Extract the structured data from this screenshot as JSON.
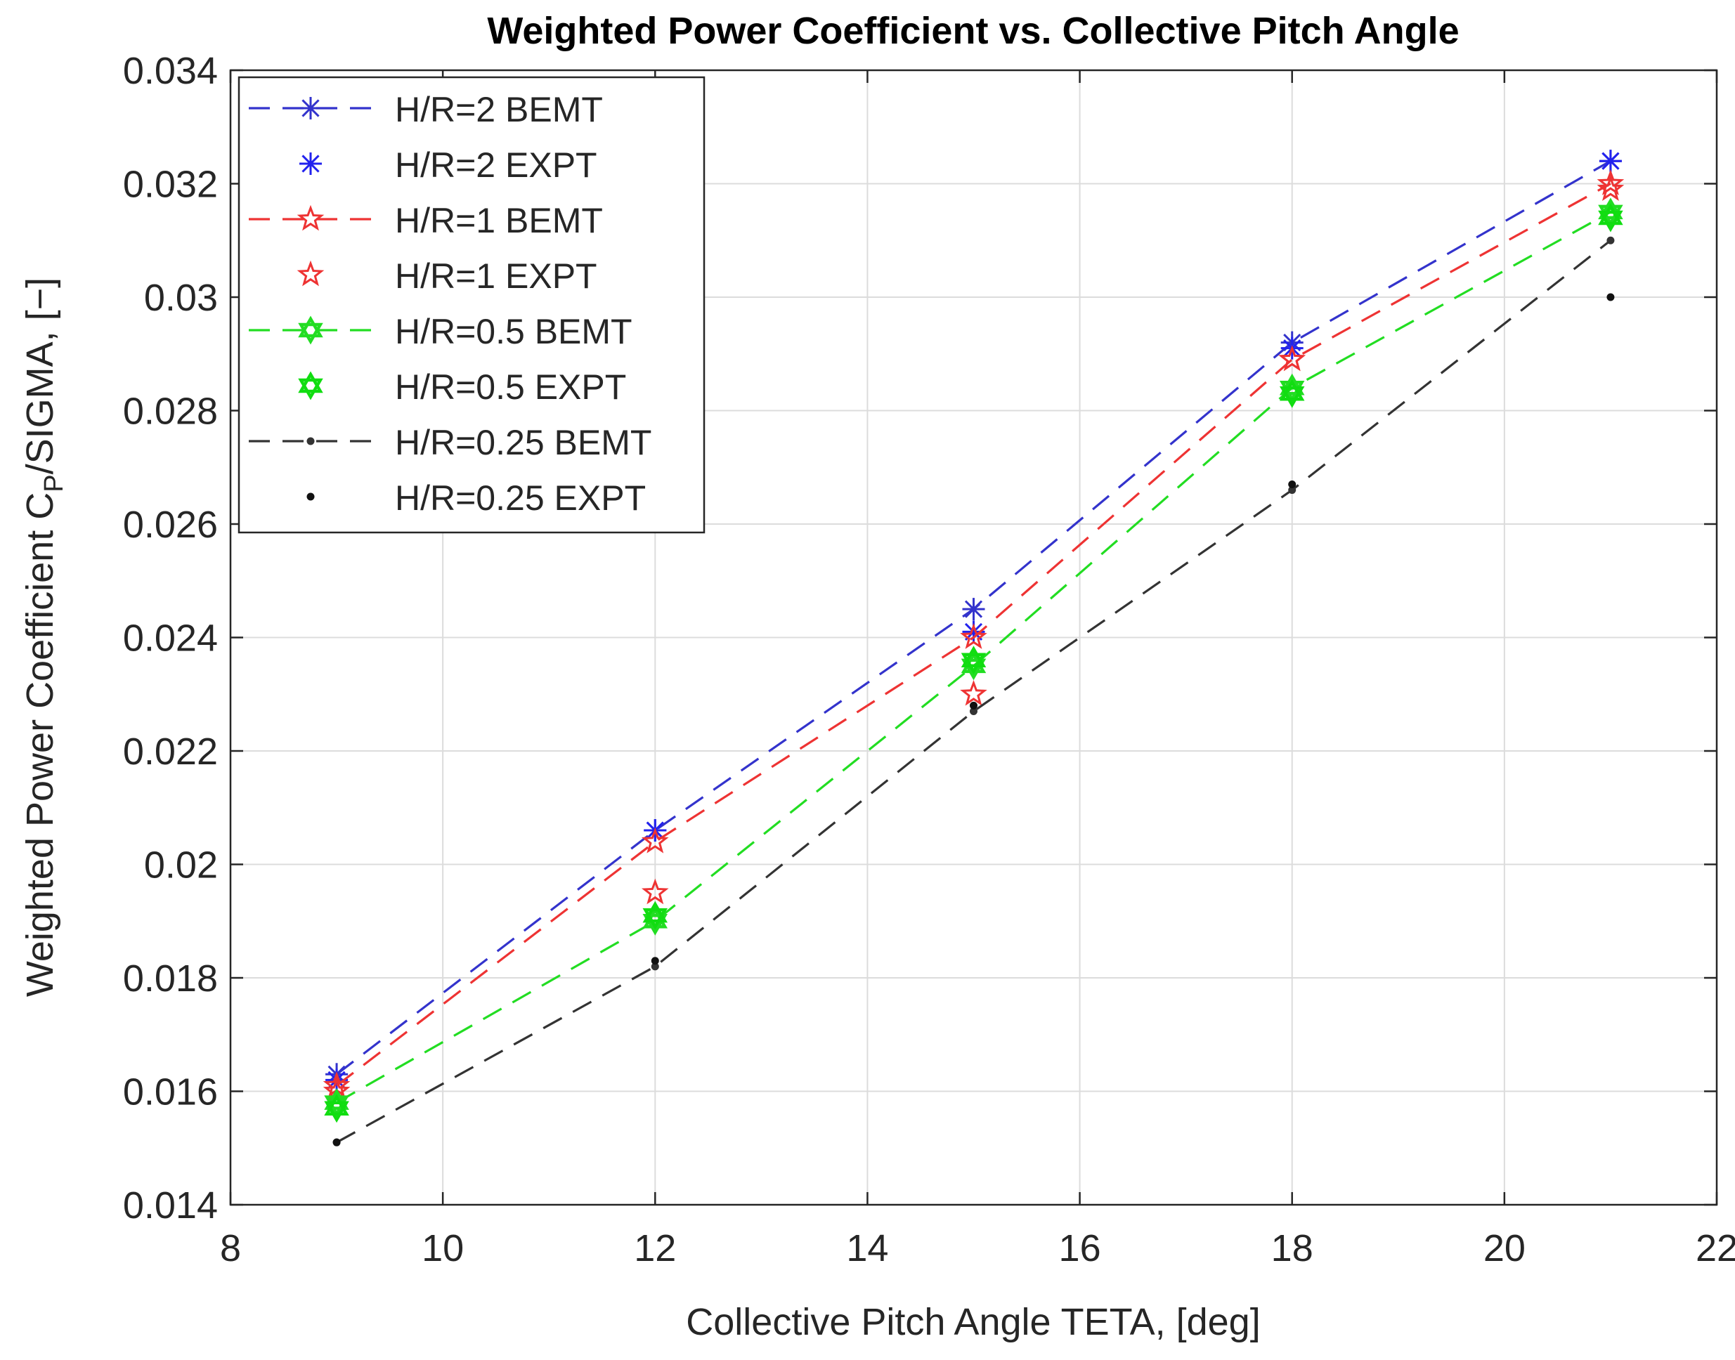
{
  "chart_data": {
    "type": "line",
    "title": "Weighted Power Coefficient vs. Collective Pitch Angle",
    "xlabel": "Collective Pitch Angle TETA, [deg]",
    "ylabel": {
      "prefix": "Weighted Power Coefficient C",
      "subscript": "P",
      "suffix": "/SIGMA, [−]"
    },
    "xlim": [
      8,
      22
    ],
    "ylim": [
      0.014,
      0.034
    ],
    "xticks": [
      8,
      10,
      12,
      14,
      16,
      18,
      20,
      22
    ],
    "xtick_labels": [
      "8",
      "10",
      "12",
      "14",
      "16",
      "18",
      "20",
      "22"
    ],
    "yticks": [
      0.014,
      0.016,
      0.018,
      0.02,
      0.022,
      0.024,
      0.026,
      0.028,
      0.03,
      0.032,
      0.034
    ],
    "ytick_labels": [
      "0.014",
      "0.016",
      "0.018",
      "0.02",
      "0.022",
      "0.024",
      "0.026",
      "0.028",
      "0.03",
      "0.032",
      "0.034"
    ],
    "grid": true,
    "legend_position": "top-left",
    "x": [
      9,
      12,
      15,
      18,
      21
    ],
    "series": [
      {
        "name": "H/R=2 BEMT",
        "color": "#3333cc",
        "line": "dashed",
        "marker": "asterisk",
        "values": [
          0.0163,
          0.0206,
          0.0245,
          0.0292,
          0.0324
        ]
      },
      {
        "name": "H/R=2 EXPT",
        "color": "#2222ee",
        "line": "none",
        "marker": "asterisk",
        "values": [
          0.0162,
          0.0206,
          0.0241,
          0.0291,
          0.0324
        ]
      },
      {
        "name": "H/R=1 BEMT",
        "color": "#ee3333",
        "line": "dashed",
        "marker": "star",
        "values": [
          0.0161,
          0.0204,
          0.024,
          0.0289,
          0.032
        ]
      },
      {
        "name": "H/R=1 EXPT",
        "color": "#ee3333",
        "line": "none",
        "marker": "star",
        "values": [
          0.016,
          0.0195,
          0.023,
          0.0289,
          0.0319
        ]
      },
      {
        "name": "H/R=0.5 BEMT",
        "color": "#22dd22",
        "line": "dashed",
        "marker": "hexagram",
        "values": [
          0.0158,
          0.019,
          0.0235,
          0.0284,
          0.0315
        ]
      },
      {
        "name": "H/R=0.5 EXPT",
        "color": "#11dd11",
        "line": "none",
        "marker": "hexagram",
        "values": [
          0.0157,
          0.0191,
          0.0236,
          0.0283,
          0.0314
        ]
      },
      {
        "name": "H/R=0.25 BEMT",
        "color": "#333333",
        "line": "dashed",
        "marker": "point",
        "values": [
          0.0151,
          0.0182,
          0.0227,
          0.0266,
          0.031
        ]
      },
      {
        "name": "H/R=0.25 EXPT",
        "color": "#111111",
        "line": "none",
        "marker": "point",
        "values": [
          0.0151,
          0.0183,
          0.0228,
          0.0267,
          0.03
        ]
      }
    ]
  }
}
